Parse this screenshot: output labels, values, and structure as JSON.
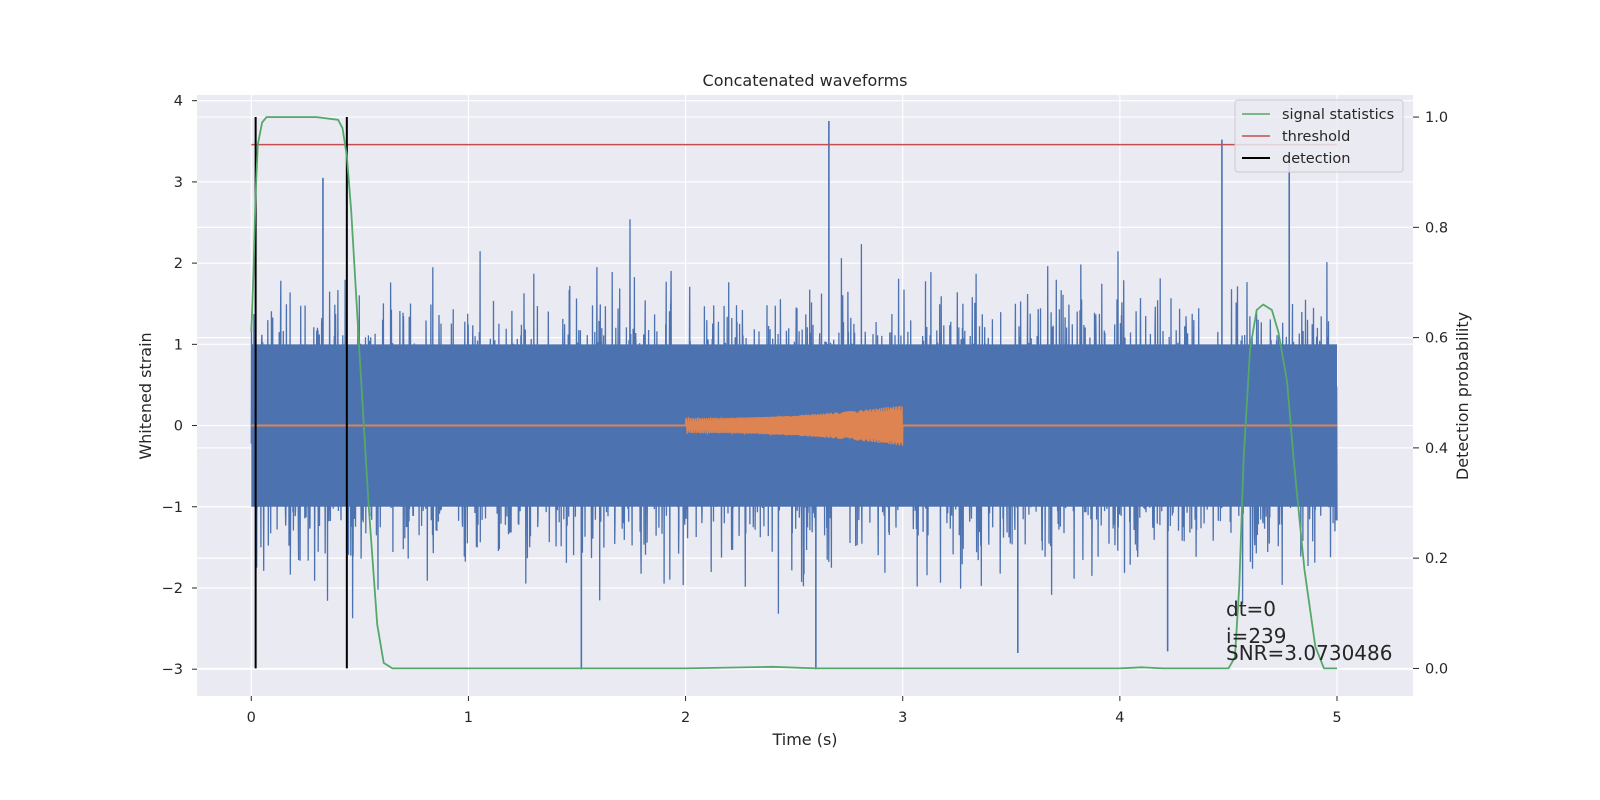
{
  "chart_data": {
    "type": "line",
    "title": "Concatenated waveforms",
    "xlabel": "Time (s)",
    "ylabel": "Whitened strain",
    "ylabel_right": "Detection probability",
    "xlim": [
      -0.25,
      5.35
    ],
    "ylim": [
      -3.33,
      4.07
    ],
    "ylim_right": [
      -0.05,
      1.04
    ],
    "xticks": [
      0,
      1,
      2,
      3,
      4,
      5
    ],
    "yticks": [
      -3,
      -2,
      -1,
      0,
      1,
      2,
      3,
      4
    ],
    "yticks_right": [
      0.0,
      0.2,
      0.4,
      0.6,
      0.8,
      1.0
    ],
    "xtick_labels": [
      "0",
      "1",
      "2",
      "3",
      "4",
      "5"
    ],
    "ytick_labels": [
      "−3",
      "−2",
      "−1",
      "0",
      "1",
      "2",
      "3",
      "4"
    ],
    "ytick_right_labels": [
      "0.0",
      "0.2",
      "0.4",
      "0.6",
      "0.8",
      "1.0"
    ],
    "grid": true,
    "legend_position": "top-right",
    "colors": {
      "background": "#eaeaf2",
      "strain": "#4c72b0",
      "injection": "#dd8452",
      "statistic": "#55a868",
      "threshold": "#c44e52",
      "detection": "#000000"
    },
    "series": [
      {
        "name": "",
        "axis": "left",
        "kind": "noise",
        "x_range": [
          0,
          5
        ],
        "envelope_peak": 3.7,
        "spikes": [
          [
            2.66,
            3.75
          ],
          [
            4.47,
            3.52
          ],
          [
            4.78,
            3.3
          ],
          [
            0.33,
            3.05
          ],
          [
            1.52,
            -3.0
          ],
          [
            2.6,
            -3.0
          ],
          [
            3.53,
            -2.8
          ],
          [
            4.22,
            -2.78
          ]
        ]
      },
      {
        "name": "",
        "axis": "left",
        "kind": "chirp",
        "x_range": [
          2.0,
          3.0
        ],
        "amplitude_start": 0.09,
        "amplitude_end": 0.25
      },
      {
        "name": "signal statistics",
        "axis": "right",
        "x": [
          0,
          0.01,
          0.02,
          0.03,
          0.05,
          0.07,
          0.1,
          0.2,
          0.3,
          0.4,
          0.42,
          0.44,
          0.46,
          0.5,
          0.54,
          0.58,
          0.61,
          0.65,
          1.0,
          1.5,
          2.0,
          2.4,
          2.6,
          3.0,
          4.0,
          4.1,
          4.2,
          4.5,
          4.53,
          4.55,
          4.57,
          4.6,
          4.63,
          4.66,
          4.7,
          4.73,
          4.77,
          4.8,
          4.85,
          4.9,
          4.94,
          5.0
        ],
        "y": [
          0.61,
          0.72,
          0.86,
          0.95,
          0.99,
          1.0,
          1.0,
          1.0,
          1.0,
          0.995,
          0.98,
          0.93,
          0.83,
          0.56,
          0.3,
          0.08,
          0.01,
          0.0,
          0.0,
          0.0,
          0.0,
          0.003,
          0.0,
          0.0,
          0.0,
          0.002,
          0.0,
          0.0,
          0.02,
          0.15,
          0.38,
          0.58,
          0.65,
          0.66,
          0.65,
          0.61,
          0.52,
          0.38,
          0.18,
          0.04,
          0.0,
          0.0
        ]
      },
      {
        "name": "threshold",
        "axis": "right",
        "x": [
          0,
          5
        ],
        "y": [
          0.95,
          0.95
        ]
      },
      {
        "name": "detection",
        "axis": "right",
        "vlines": [
          0.02,
          0.44
        ],
        "y_range": [
          0.0,
          1.0
        ]
      }
    ],
    "annotations": [
      "dt=0",
      "i=239",
      "SNR=3.0730486"
    ]
  }
}
